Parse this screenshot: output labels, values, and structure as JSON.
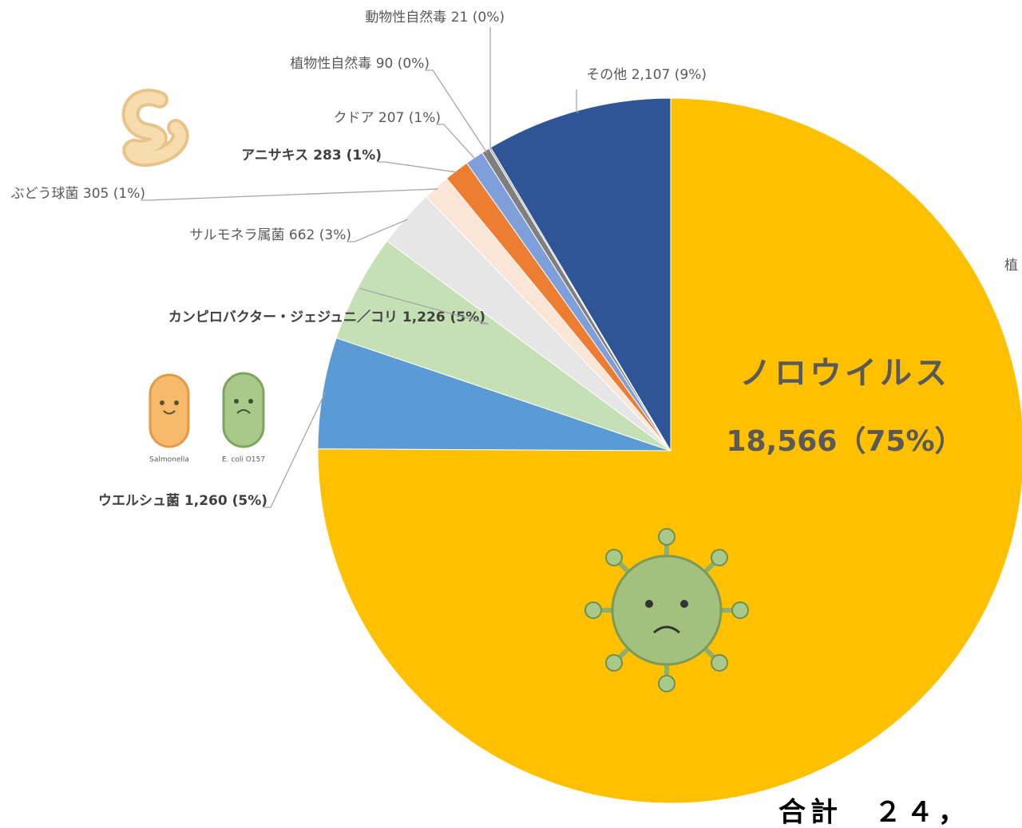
{
  "chart_data": {
    "type": "pie",
    "categories": [
      "ノロウイルス",
      "ウエルシュ菌",
      "カンピロバクター・ジェジュニ／コリ",
      "サルモネラ属菌",
      "ぶどう球菌",
      "アニサキス",
      "クドア",
      "植物性自然毒",
      "動物性自然毒",
      "その他"
    ],
    "values": [
      18566,
      1260,
      1226,
      662,
      305,
      283,
      207,
      90,
      21,
      2107
    ],
    "value_labels": [
      "18,566（75%）",
      "1,260 (5%)",
      "1,226 (5%)",
      "662 (3%)",
      "305 (1%)",
      "283 (1%)",
      "207 (1%)",
      "90 (0%)",
      "21 (0%)",
      "2,107 (9%)"
    ],
    "colors": [
      "#ffc000",
      "#5b9bd5",
      "#c5e0b4",
      "#e7e6e6",
      "#fbe5d6",
      "#ed7d31",
      "#7f9fdb",
      "#7f7f7f",
      "#a5a5a5",
      "#2f5597"
    ]
  },
  "illustrations": {
    "captions": [
      "Salmonella",
      "E. coli O157"
    ]
  },
  "fragments": {
    "right_label": "植",
    "total": "合計　２４，"
  }
}
